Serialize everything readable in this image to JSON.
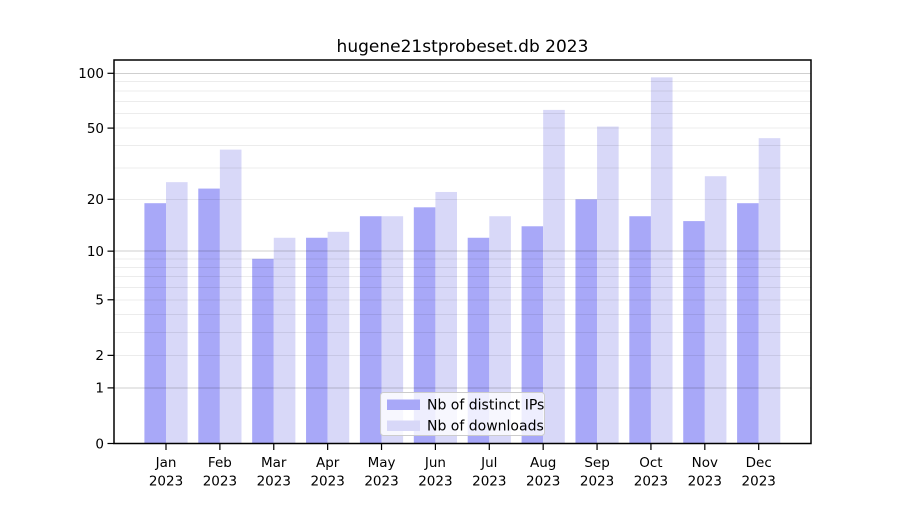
{
  "chart_data": {
    "type": "bar",
    "title": "hugene21stprobeset.db 2023",
    "categories": [
      "Jan",
      "Feb",
      "Mar",
      "Apr",
      "May",
      "Jun",
      "Jul",
      "Aug",
      "Sep",
      "Oct",
      "Nov",
      "Dec"
    ],
    "x_year": "2023",
    "series": [
      {
        "name": "Nb of distinct IPs",
        "color": "#a8a8f8",
        "values": [
          19,
          23,
          9,
          12,
          16,
          18,
          12,
          14,
          20,
          16,
          15,
          19
        ]
      },
      {
        "name": "Nb of downloads",
        "color": "#d8d8f8",
        "values": [
          25,
          38,
          12,
          13,
          16,
          22,
          16,
          63,
          51,
          95,
          27,
          44
        ]
      }
    ],
    "yscale": "log1p",
    "y_ticks": [
      0,
      1,
      2,
      5,
      10,
      20,
      50,
      100
    ],
    "ylim": [
      0,
      110
    ],
    "grid": true,
    "grid_minor_values": [
      2,
      3,
      4,
      5,
      6,
      7,
      8,
      9,
      20,
      30,
      40,
      50,
      60,
      70,
      80,
      90
    ],
    "grid_decade_values": [
      1,
      10,
      100
    ],
    "legend_position": "lower center",
    "xlabel": "",
    "ylabel": ""
  },
  "colors": {
    "background": "#ffffff",
    "axis": "#000000",
    "grid_minor": "rgba(0,0,0,0.075)",
    "grid_decade": "rgba(0,0,0,0.19)",
    "legend_bg": "rgba(255,255,255,0.8)",
    "legend_border": "#cccccc"
  }
}
